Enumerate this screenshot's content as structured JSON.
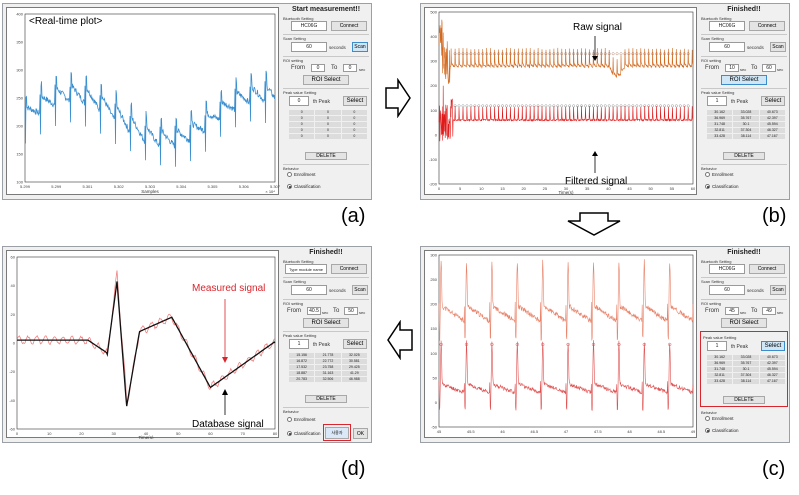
{
  "panels": {
    "a": {
      "letter": "(a)",
      "title": "Start measurement!!",
      "plot_label": "<Real-time plot>",
      "xlabel": "Samples",
      "xscale": "× 10⁴",
      "yticks": [
        "400",
        "350",
        "300",
        "250",
        "200",
        "150",
        "100"
      ],
      "xticks": [
        "5.299",
        "5.299",
        "5.301",
        "5.302",
        "5.303",
        "5.304",
        "5.305",
        "5.306",
        "5.307"
      ]
    },
    "b": {
      "letter": "(b)",
      "title": "Finished!!",
      "raw_label": "Raw signal",
      "filtered_label": "Filtered signal",
      "xlabel": "Time(s)",
      "yticks": [
        "500",
        "400",
        "300",
        "200",
        "100",
        "0",
        "-100",
        "-200"
      ],
      "xticks": [
        "0",
        "5",
        "10",
        "15",
        "20",
        "25",
        "30",
        "35",
        "40",
        "45",
        "50",
        "55",
        "60"
      ]
    },
    "c": {
      "letter": "(c)",
      "title": "Finished!!",
      "xticks": [
        "45",
        "45.5",
        "46",
        "46.5",
        "47",
        "47.5",
        "48",
        "48.5",
        "49"
      ],
      "yticks": [
        "300",
        "250",
        "200",
        "150",
        "100",
        "50",
        "0",
        "-50"
      ]
    },
    "d": {
      "letter": "(d)",
      "title": "Finished!!",
      "measured_label": "Measured signal",
      "database_label": "Database signal",
      "xlabel": "Time(s)",
      "yticks": [
        "60",
        "40",
        "20",
        "0",
        "-20",
        "-40",
        "-60"
      ],
      "xticks": [
        "0",
        "10",
        "20",
        "30",
        "40",
        "50",
        "60",
        "70",
        "80"
      ]
    }
  },
  "controls": {
    "bluetooth_setting": "Bluetooth Setting",
    "device_name": "HC06G",
    "device_placeholder_d": "Type module name",
    "connect": "Connect",
    "scan_setting": "Scan Setting",
    "scan_seconds": "60",
    "seconds": "seconds",
    "scan": "Scan",
    "roi_setting": "ROI setting",
    "from": "From",
    "to": "To",
    "sec": "sec",
    "roi_a_from": "0",
    "roi_a_to": "0",
    "roi_b_from": "10",
    "roi_b_to": "60",
    "roi_c_from": "45",
    "roi_c_to": "49",
    "roi_d_from": "40.5",
    "roi_d_to": "50",
    "roi_select": "ROI Select",
    "peak_setting": "Peak value Setting",
    "peak_a": "0",
    "peak_b": "1",
    "peak_c": "1",
    "peak_d": "1",
    "th_peak": "th  Peak",
    "select": "Select",
    "delete": "DELETE",
    "behavior": "Behavior",
    "enrollment": "Enrollment",
    "classification": "Classification",
    "ok": "OK",
    "confirm_btn": "사용자"
  },
  "peak_table_a": [
    "0",
    "0",
    "0",
    "0",
    "0",
    "0",
    "0",
    "0",
    "0",
    "0",
    "0",
    "0",
    "0",
    "0",
    "0"
  ],
  "peak_table_bc": [
    "30.162",
    "33.028",
    "40.673",
    "36.969",
    "35.767",
    "42.397",
    "31.748",
    "30.1",
    "45.594",
    "32.811",
    "37.304",
    "46.327",
    "33.428",
    "38.114",
    "47.167"
  ],
  "peak_table_d": [
    "15.156",
    "21.778",
    "32.025",
    "16.872",
    "22.772",
    "30.581",
    "17.532",
    "23.758",
    "29.425",
    "18.887",
    "31.163",
    "41.29",
    "20.783",
    "32.506",
    "46.988"
  ],
  "chart_data": [
    {
      "type": "line",
      "panel": "a",
      "title": "<Real-time plot>",
      "xlabel": "Samples",
      "ylim": [
        100,
        400
      ],
      "series": [
        {
          "name": "",
          "color": "#3a8fd0"
        }
      ]
    },
    {
      "type": "line",
      "panel": "b",
      "xlabel": "Time(s)",
      "ylim": [
        -200,
        500
      ],
      "xlim": [
        0,
        60
      ],
      "series": [
        {
          "name": "Raw signal",
          "color": "#d2691e"
        },
        {
          "name": "Filtered signal",
          "color": "#e01b1b"
        }
      ]
    },
    {
      "type": "line",
      "panel": "c",
      "xlim": [
        45,
        49
      ],
      "ylim": [
        -50,
        300
      ],
      "series": [
        {
          "name": "",
          "color": "#e8836a"
        },
        {
          "name": "",
          "color": "#e05050"
        }
      ]
    },
    {
      "type": "line",
      "panel": "d",
      "xlabel": "Time(s)",
      "ylim": [
        -60,
        60
      ],
      "xlim": [
        0,
        80
      ],
      "series": [
        {
          "name": "Measured signal",
          "color": "#f28080"
        },
        {
          "name": "Database signal",
          "color": "#111111"
        }
      ]
    }
  ]
}
